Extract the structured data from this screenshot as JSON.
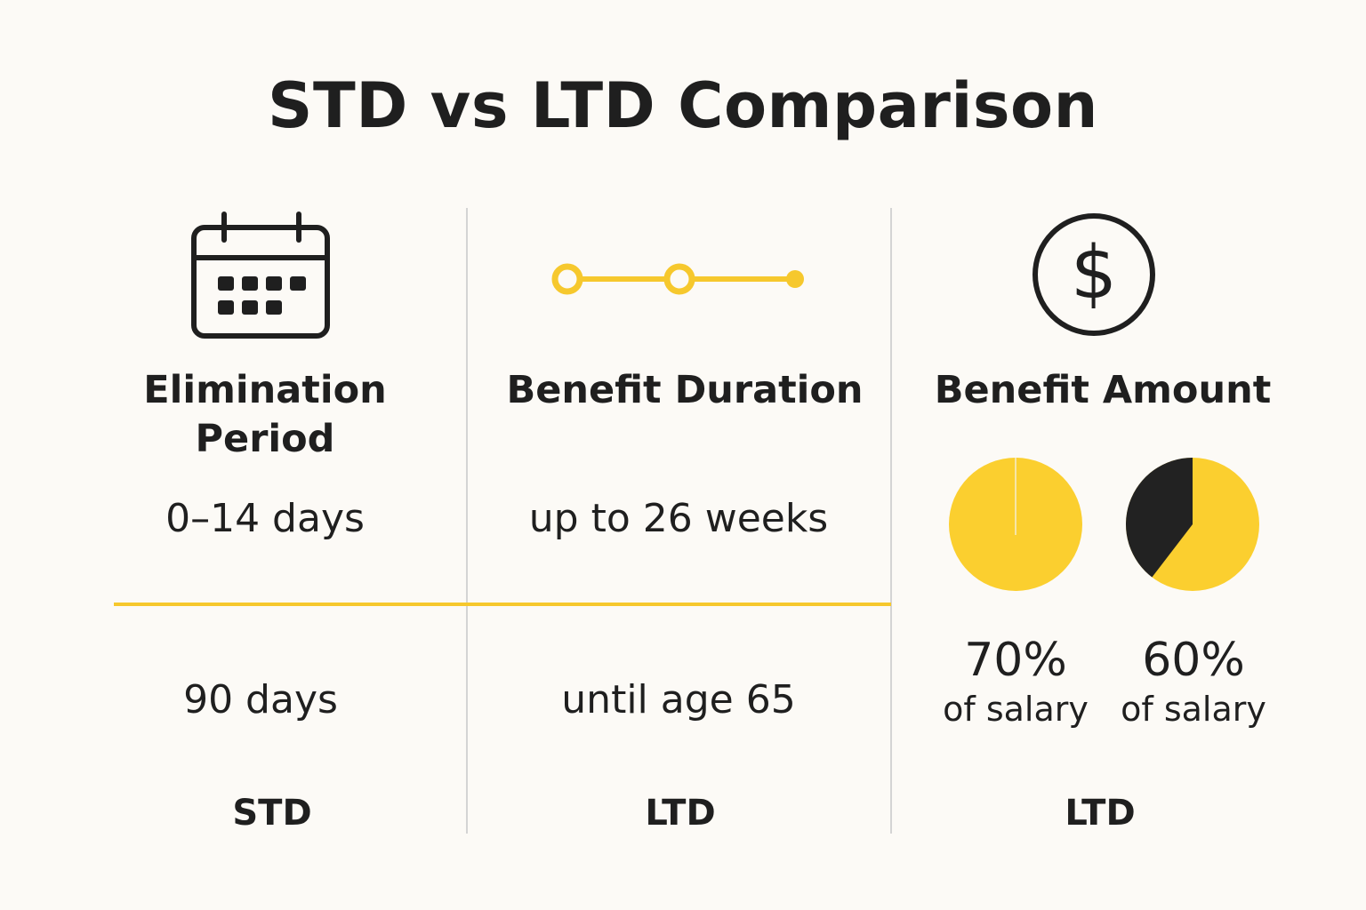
{
  "title": "STD vs LTD Comparison",
  "columns": [
    {
      "icon": "calendar-icon",
      "label_line1": "Elimination",
      "label_line2": "Period",
      "std_value": "0–14 days",
      "ltd_value": "90 days",
      "footer": "STD"
    },
    {
      "icon": "timeline-icon",
      "label": "Benefit Duration",
      "std_value": "up to 26 weeks",
      "ltd_value": "until age 65",
      "footer": "LTD"
    },
    {
      "icon": "dollar-icon",
      "label": "Benefit Amount",
      "pies": [
        {
          "value": 70,
          "percent_label": "70%",
          "sublabel": "of salary"
        },
        {
          "value": 60,
          "percent_label": "60%",
          "sublabel": "of salary"
        }
      ],
      "footer": "LTD"
    }
  ],
  "colors": {
    "accent": "#f6c82d",
    "pie_fill": "#fbcf2f",
    "pie_dark": "#222222",
    "text": "#1f1f1f",
    "divider": "#d4d4d4",
    "background": "#fcfaf6"
  }
}
